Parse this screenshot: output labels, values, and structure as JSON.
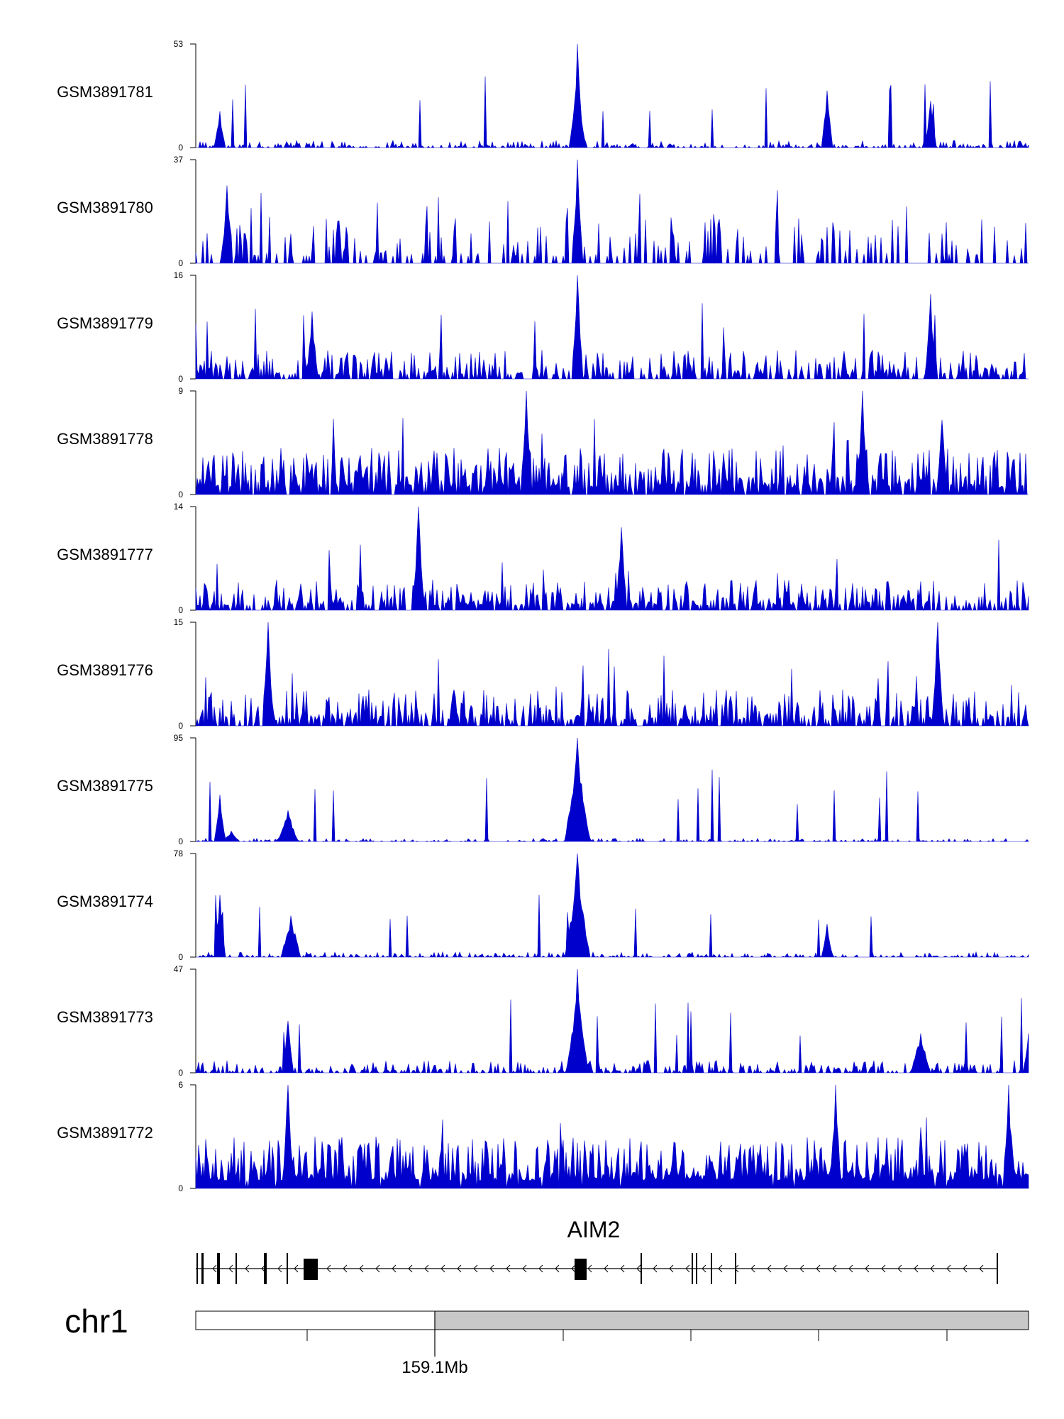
{
  "chart_data": {
    "type": "area",
    "fill_color": "#0000cc",
    "line_color": "#0000cc",
    "tracks": [
      {
        "name": "GSM3891781",
        "ymax": 53,
        "ymin": 0
      },
      {
        "name": "GSM3891780",
        "ymax": 37,
        "ymin": 0
      },
      {
        "name": "GSM3891779",
        "ymax": 16,
        "ymin": 0
      },
      {
        "name": "GSM3891778",
        "ymax": 9,
        "ymin": 0
      },
      {
        "name": "GSM3891777",
        "ymax": 14,
        "ymin": 0
      },
      {
        "name": "GSM3891776",
        "ymax": 15,
        "ymin": 0
      },
      {
        "name": "GSM3891775",
        "ymax": 95,
        "ymin": 0
      },
      {
        "name": "GSM3891774",
        "ymax": 78,
        "ymin": 0
      },
      {
        "name": "GSM3891773",
        "ymax": 47,
        "ymin": 0
      },
      {
        "name": "GSM3891772",
        "ymax": 6,
        "ymin": 0
      }
    ],
    "gene": {
      "name": "AIM2",
      "strand": "-"
    },
    "chromosome": {
      "name": "chr1",
      "tick_label": "159.1Mb"
    }
  }
}
